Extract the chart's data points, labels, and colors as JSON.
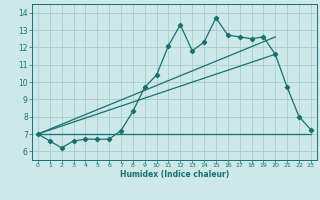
{
  "xlabel": "Humidex (Indice chaleur)",
  "xlim": [
    -0.5,
    23.5
  ],
  "ylim": [
    5.5,
    14.5
  ],
  "xticks": [
    0,
    1,
    2,
    3,
    4,
    5,
    6,
    7,
    8,
    9,
    10,
    11,
    12,
    13,
    14,
    15,
    16,
    17,
    18,
    19,
    20,
    21,
    22,
    23
  ],
  "yticks": [
    6,
    7,
    8,
    9,
    10,
    11,
    12,
    13,
    14
  ],
  "bg_color": "#cce8e8",
  "grid_color": "#aacccc",
  "line_color": "#1a7070",
  "line1_x": [
    0,
    1,
    2,
    3,
    4,
    5,
    6,
    7,
    8,
    9,
    10,
    11,
    12,
    13,
    14,
    15,
    16,
    17,
    18,
    19,
    20,
    21,
    22,
    23
  ],
  "line1_y": [
    7.0,
    6.6,
    6.2,
    6.6,
    6.7,
    6.7,
    6.7,
    7.2,
    8.3,
    9.7,
    10.4,
    12.1,
    13.3,
    11.8,
    12.3,
    13.7,
    12.7,
    12.6,
    12.5,
    12.6,
    11.6,
    9.7,
    8.0,
    7.25
  ],
  "line2_x": [
    0,
    20
  ],
  "line2_y": [
    7.0,
    12.6
  ],
  "line3_x": [
    0,
    20
  ],
  "line3_y": [
    7.0,
    11.6
  ],
  "flat_y": 7.0
}
